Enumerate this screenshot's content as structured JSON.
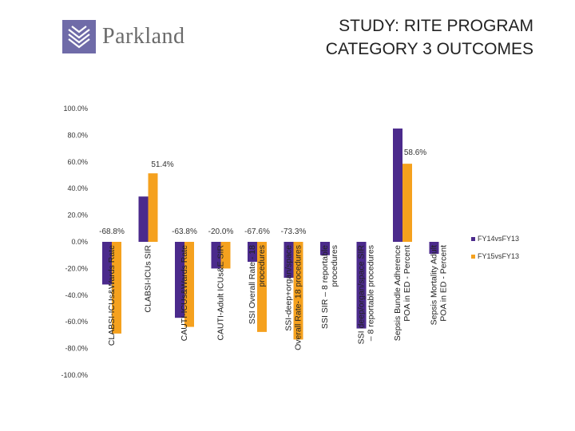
{
  "header": {
    "logo_text": "Parkland",
    "title_line1": "STUDY: RITE PROGRAM",
    "title_line2": "CATEGORY 3 OUTCOMES"
  },
  "colors": {
    "series1": "#4b2a8c",
    "series2": "#f5a11e",
    "logo": "#6f6ba8"
  },
  "chart_data": {
    "type": "bar",
    "title": "",
    "xlabel": "",
    "ylabel": "",
    "ylim": [
      -100,
      100
    ],
    "yticks": [
      "100.0%",
      "80.0%",
      "60.0%",
      "40.0%",
      "20.0%",
      "0.0%",
      "-20.0%",
      "-40.0%",
      "-60.0%",
      "-80.0%",
      "-100.0%"
    ],
    "grid": false,
    "legend_position": "right",
    "categories": [
      [
        "CLABSI-ICUs&Wards Rate"
      ],
      [
        "CLABSI-ICUs SIR"
      ],
      [
        "CAUTI-ICUs&Wards Rate"
      ],
      [
        "CAUTI-Adult ICUs&E SIR"
      ],
      [
        "SSI Overall Rate - 18",
        "procedures"
      ],
      [
        "SSI-deep+organ/space",
        "Overall Rate- 18 procedures"
      ],
      [
        "SSI SIR – 8 reportable",
        "procedures"
      ],
      [
        "SSI deep/organ/space SIR",
        "– 8 reportable procedures"
      ],
      [
        "Sepsis Bundle Adherence",
        "POA in ED - Percent"
      ],
      [
        "Sepsis Mortality Adult",
        "POA in ED - Percent"
      ]
    ],
    "series": [
      {
        "name": "FY14vsFY13",
        "values": [
          -32,
          34,
          -57,
          -20,
          -15,
          -27,
          -10,
          -65,
          85,
          -9
        ]
      },
      {
        "name": "FY15vsFY13",
        "values": [
          -68.8,
          51.4,
          -63.8,
          -20.0,
          -67.6,
          -73.3,
          null,
          null,
          58.6,
          null
        ]
      }
    ],
    "data_labels": [
      "-68.8%",
      "51.4%",
      "-63.8%",
      "-20.0%",
      "-67.6%",
      "-73.3%",
      "",
      "",
      "58.6%",
      ""
    ]
  }
}
